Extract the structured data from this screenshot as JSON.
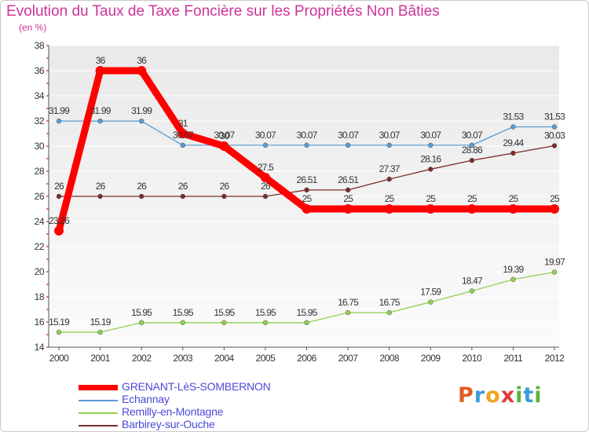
{
  "title": "Evolution du Taux de Taxe Foncière sur les Propriétés Non Bâties",
  "subtitle": "(en %)",
  "colors": {
    "title": "#cc3399",
    "axis_text": "#333333",
    "legend_text": "#4a4ad8",
    "plot_bg_top": "#e9e9e9",
    "plot_bg_bottom": "#fbfbfb"
  },
  "logo": {
    "text": "Proxiti"
  },
  "chart_data": {
    "type": "line",
    "title": "Evolution du Taux de Taxe Foncière sur les Propriétés Non Bâties",
    "ylabel": "(en %)",
    "x": [
      "2000",
      "2001",
      "2002",
      "2003",
      "2004",
      "2005",
      "2006",
      "2007",
      "2008",
      "2009",
      "2010",
      "2011",
      "2012"
    ],
    "ylim": [
      14,
      38
    ],
    "yticks": [
      14,
      16,
      18,
      20,
      22,
      24,
      26,
      28,
      30,
      32,
      34,
      36,
      38
    ],
    "grid": "horizontal",
    "legend_position": "bottom-left",
    "series": [
      {
        "name": "GRENANT-LèS-SOMBERNON",
        "color": "#ff0000",
        "values": [
          23.26,
          36,
          36,
          31,
          30,
          27.5,
          25,
          25,
          25,
          25,
          25,
          25,
          25
        ],
        "labels": [
          "23.26",
          "36",
          "36",
          "31",
          "30",
          "27.5",
          "25",
          "25",
          "25",
          "25",
          "25",
          "25",
          "25"
        ]
      },
      {
        "name": "Echannay",
        "color": "#5b9bd5",
        "values": [
          31.99,
          31.99,
          31.99,
          30.07,
          30.07,
          30.07,
          30.07,
          30.07,
          30.07,
          30.07,
          30.07,
          31.53,
          31.53
        ],
        "labels": [
          "31.99",
          "31.99",
          "31.99",
          "30.07",
          "30.07",
          "30.07",
          "30.07",
          "30.07",
          "30.07",
          "30.07",
          "30.07",
          "31.53",
          "31.53"
        ]
      },
      {
        "name": "Remilly-en-Montagne",
        "color": "#92d050",
        "values": [
          15.19,
          15.19,
          15.95,
          15.95,
          15.95,
          15.95,
          15.95,
          16.75,
          16.75,
          17.59,
          18.47,
          19.39,
          19.97
        ],
        "labels": [
          "15.19",
          "15.19",
          "15.95",
          "15.95",
          "15.95",
          "15.95",
          "15.95",
          "16.75",
          "16.75",
          "17.59",
          "18.47",
          "19.39",
          "19.97"
        ]
      },
      {
        "name": "Barbirey-sur-Ouche",
        "color": "#7b2c2c",
        "values": [
          26,
          26,
          26,
          26,
          26,
          26,
          26.51,
          26.51,
          27.37,
          28.16,
          28.86,
          29.44,
          30.03
        ],
        "labels": [
          "26",
          "26",
          "26",
          "26",
          "26",
          "26",
          "26.51",
          "26.51",
          "27.37",
          "28.16",
          "28.86",
          "29.44",
          "30.03"
        ]
      }
    ]
  }
}
